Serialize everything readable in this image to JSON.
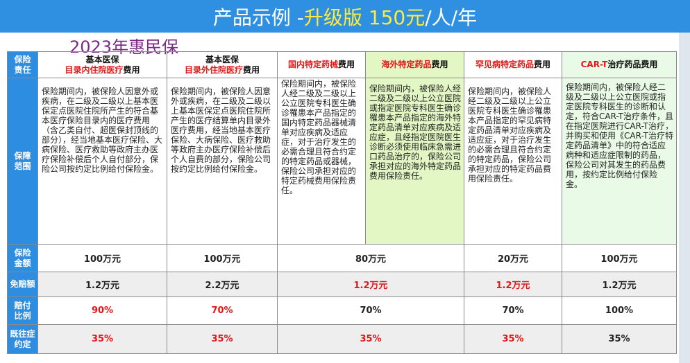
{
  "header": {
    "title_prefix": "产品示例 -",
    "title_highlight": "升级版 150元",
    "title_suffix": "/人/年"
  },
  "subtitle": "2023年惠民保",
  "colors": {
    "banner": "#2f8fe0",
    "rowhead": "#2d8de0",
    "highlight_red": "#e01818",
    "title_yellow": "#ffeb3b",
    "subtitle_purple": "#7b2a87"
  },
  "table": {
    "corner_label": "保险\n责任",
    "columns": [
      {
        "line1": "基本医保",
        "red": "目录内住院医疗",
        "rest": "费用"
      },
      {
        "line1": "基本医保",
        "red": "目录外住院医疗",
        "rest": "费用"
      },
      {
        "line1": "",
        "red": "国内特定药械",
        "rest": "费用"
      },
      {
        "line1": "",
        "red": "海外特定药品",
        "rest": "费用"
      },
      {
        "line1": "",
        "red": "罕见病特定药品",
        "rest": "费用"
      },
      {
        "line1": "",
        "red": "CAR-T",
        "rest": "治疗药品费用"
      }
    ],
    "scope_label": "保障\n范围",
    "scope": [
      "保险期间内，被保险人因意外或疾病，在二级及二级以上基本医保定点医院住院所产生的符合基本医疗保险目录内的医疗费用（含乙类自付、超医保封顶线的部分），经当地基本医疗保险、大病保险、医疗救助等政府主办医疗保险补偿后个人自付部分，保险公司按约定比例给付保险金。",
      "保险期间内，被保险人因意外或疾病，在二级及二级以上基本医保定点医院住院所产生的医疗结算单内目录外医疗费用，经当地基本医疗保险、大病保险、医疗救助等政府主办医疗保险补偿后个人自费的部分，保险公司按约定比例给付保险金。",
      "保险期间内，被保险人经二级及二级以上公立医院专科医生确诊罹患本产品指定的国内特定药品器械清单对应疾病及适应症，对于治疗发生的必需合理且符合约定的特定药品或器械，保险公司承担对应的特定药械费用保险责任。",
      "保险期间内，被保险人经二级及二级以上公立医院或指定医院专科医生确诊罹患本产品指定的海外特定药品清单对应疾病及适应症，且经指定医院医生诊断必须使用临床急需进口药品治疗的，保险公司承担对应的海外特定药品费用保险责任。",
      "保险期间内，被保险人经二级及二级以上公立医院专科医生确诊罹患本产品指定的罕见病特定药品清单对应疾病及适应症，对于治疗发生的必需合理且符合约定的特定药品，保险公司承担对应的特定药品费用保险责任。",
      "保险期间内，被保险人经二级及二级以上公立医院或指定医院专科医生的诊断和认定，符合CAR-T治疗条件，且在指定医院进行CAR-T治疗，并购买和使用《CAR-T治疗特定药品清单》中的符合适应病种和适应症限制的药品，保险公司对其发生的药品费用，按约定比例给付保险金。"
    ],
    "amount_label": "保险\n金额",
    "amounts": [
      "100万元",
      "100万元",
      "80万元",
      "20万元",
      "100万元"
    ],
    "deductible_label": "免赔额",
    "deductibles": [
      "1.2万元",
      "2.2万元",
      "1.2万元",
      "1.2万元",
      "1.2万元"
    ],
    "ratio_label": "赔付\n比例",
    "ratios": [
      "90%",
      "70%",
      "70%",
      "70%",
      "100%"
    ],
    "preexisting_label": "既往症\n约定",
    "preexisting": [
      "35%",
      "35%",
      "35%",
      "35%",
      "35%"
    ]
  }
}
